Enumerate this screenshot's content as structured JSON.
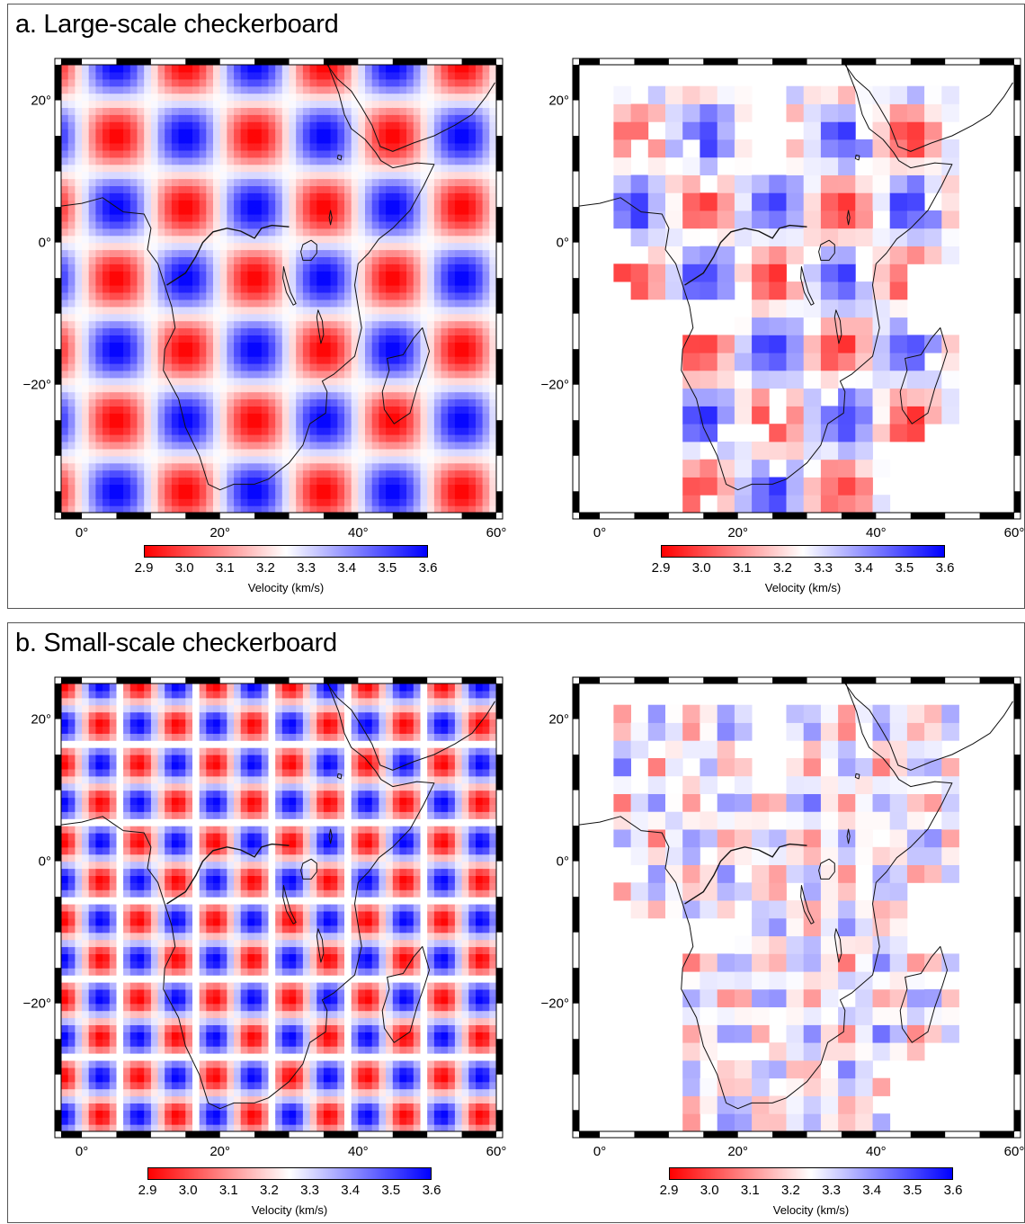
{
  "panels": {
    "a": {
      "title": "a. Large-scale checkerboard"
    },
    "b": {
      "title": "b. Small-scale checkerboard"
    }
  },
  "axes": {
    "x_ticks": [
      "0°",
      "20°",
      "40°",
      "60°"
    ],
    "y_ticks": [
      "20°",
      "0°",
      "−20°"
    ],
    "x_range": [
      -3,
      60
    ],
    "y_range": [
      -38,
      25
    ]
  },
  "colorbar": {
    "ticks": [
      "2.9",
      "3.0",
      "3.1",
      "3.2",
      "3.3",
      "3.4",
      "3.5",
      "3.6"
    ],
    "label": "Velocity (km/s)",
    "min": 2.9,
    "max": 3.6,
    "colors": {
      "low": "#ff0000",
      "mid": "#ffffff",
      "high": "#0000ff"
    }
  },
  "maps": [
    {
      "id": "a-input",
      "panel": "a",
      "kind": "input",
      "pattern": "large"
    },
    {
      "id": "a-recovered",
      "panel": "a",
      "kind": "recovered",
      "pattern": "large"
    },
    {
      "id": "b-input",
      "panel": "b",
      "kind": "input",
      "pattern": "small"
    },
    {
      "id": "b-recovered",
      "panel": "b",
      "kind": "recovered",
      "pattern": "small"
    }
  ]
}
